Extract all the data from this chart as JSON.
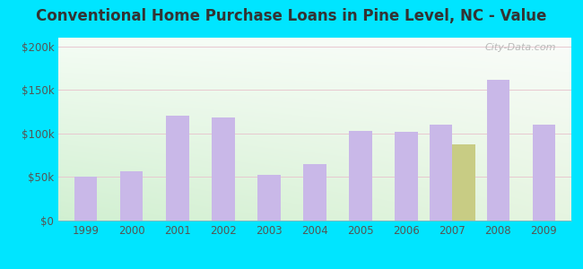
{
  "title": "Conventional Home Purchase Loans in Pine Level, NC - Value",
  "years": [
    1999,
    2000,
    2001,
    2002,
    2003,
    2004,
    2005,
    2006,
    2007,
    2008,
    2009
  ],
  "hmda_values": [
    50000,
    57000,
    120000,
    118000,
    52000,
    65000,
    103000,
    102000,
    110000,
    162000,
    110000
  ],
  "pmic_values": [
    0,
    0,
    0,
    0,
    0,
    0,
    0,
    0,
    88000,
    0,
    0
  ],
  "hmda_color": "#c9b8e8",
  "pmic_color": "#c8cc84",
  "ylim": [
    0,
    210000
  ],
  "yticks": [
    0,
    50000,
    100000,
    150000,
    200000
  ],
  "ytick_labels": [
    "$0",
    "$50k",
    "$100k",
    "$150k",
    "$200k"
  ],
  "bg_outer": "#00e5ff",
  "watermark": "City-Data.com",
  "bar_width": 0.5,
  "title_fontsize": 12,
  "tick_fontsize": 8.5
}
